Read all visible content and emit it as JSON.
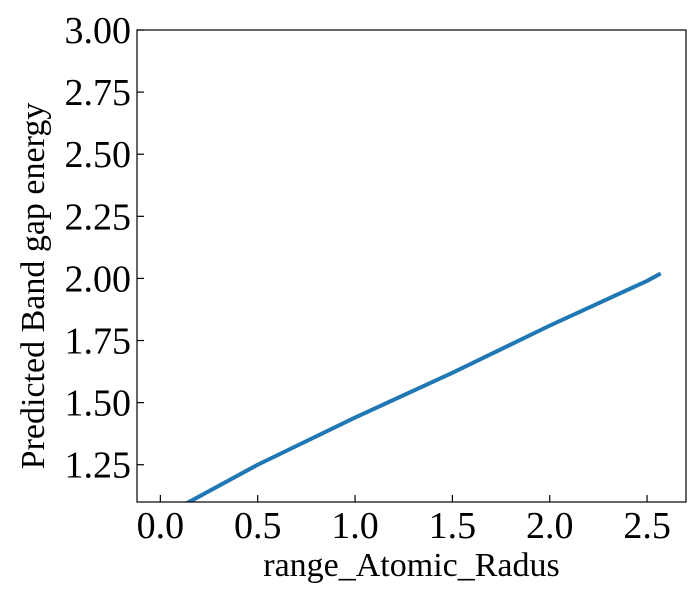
{
  "chart_data": {
    "type": "line",
    "title": "",
    "xlabel": "range_Atomic_Radus",
    "ylabel": "Predicted Band gap energy",
    "xlim": [
      -0.12,
      2.7
    ],
    "ylim": [
      1.1,
      3.0
    ],
    "xticks": [
      0.0,
      0.5,
      1.0,
      1.5,
      2.0,
      2.5
    ],
    "xtick_labels": [
      "0.0",
      "0.5",
      "1.0",
      "1.5",
      "2.0",
      "2.5"
    ],
    "yticks": [
      1.25,
      1.5,
      1.75,
      2.0,
      2.25,
      2.5,
      2.75,
      3.0
    ],
    "ytick_labels": [
      "1.25",
      "1.50",
      "1.75",
      "2.00",
      "2.25",
      "2.50",
      "2.75",
      "3.00"
    ],
    "grid": false,
    "series": [
      {
        "color": "#1f77b4",
        "x": [
          0.1,
          0.5,
          1.0,
          1.5,
          2.0,
          2.5,
          2.57
        ],
        "y": [
          1.08,
          1.25,
          1.44,
          1.62,
          1.81,
          1.99,
          2.02
        ]
      }
    ]
  }
}
